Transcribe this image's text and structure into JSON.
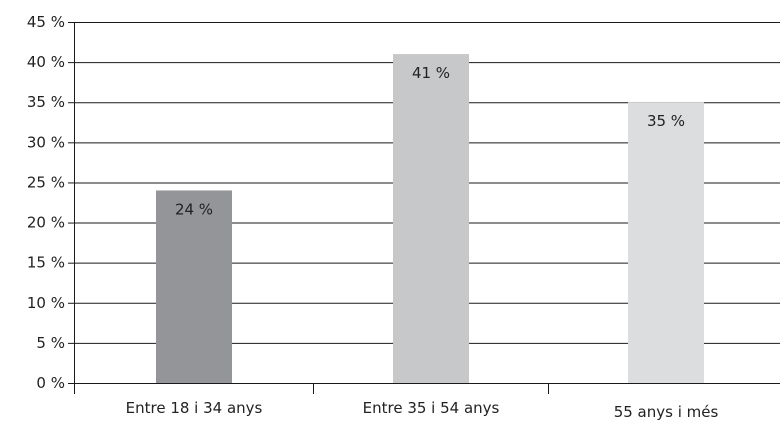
{
  "chart_data": {
    "type": "bar",
    "categories": [
      "Entre 18 i 34 anys",
      "Entre 35 i 54 anys",
      "55 anys i més"
    ],
    "values": [
      24,
      41,
      35
    ],
    "value_labels": [
      "24 %",
      "41 %",
      "35 %"
    ],
    "bar_colors": [
      "#939598",
      "#c7c8ca",
      "#dcddde"
    ],
    "ylim": [
      0,
      45
    ],
    "yticks": [
      0,
      5,
      10,
      15,
      20,
      25,
      30,
      35,
      40,
      45
    ],
    "ytick_labels": [
      "0 %",
      "5 %",
      "10 %",
      "15 %",
      "20 %",
      "25 %",
      "30 %",
      "35 %",
      "40 %",
      "45 %"
    ],
    "title": "",
    "xlabel": "",
    "ylabel": "",
    "grid": true,
    "legend": "none"
  }
}
